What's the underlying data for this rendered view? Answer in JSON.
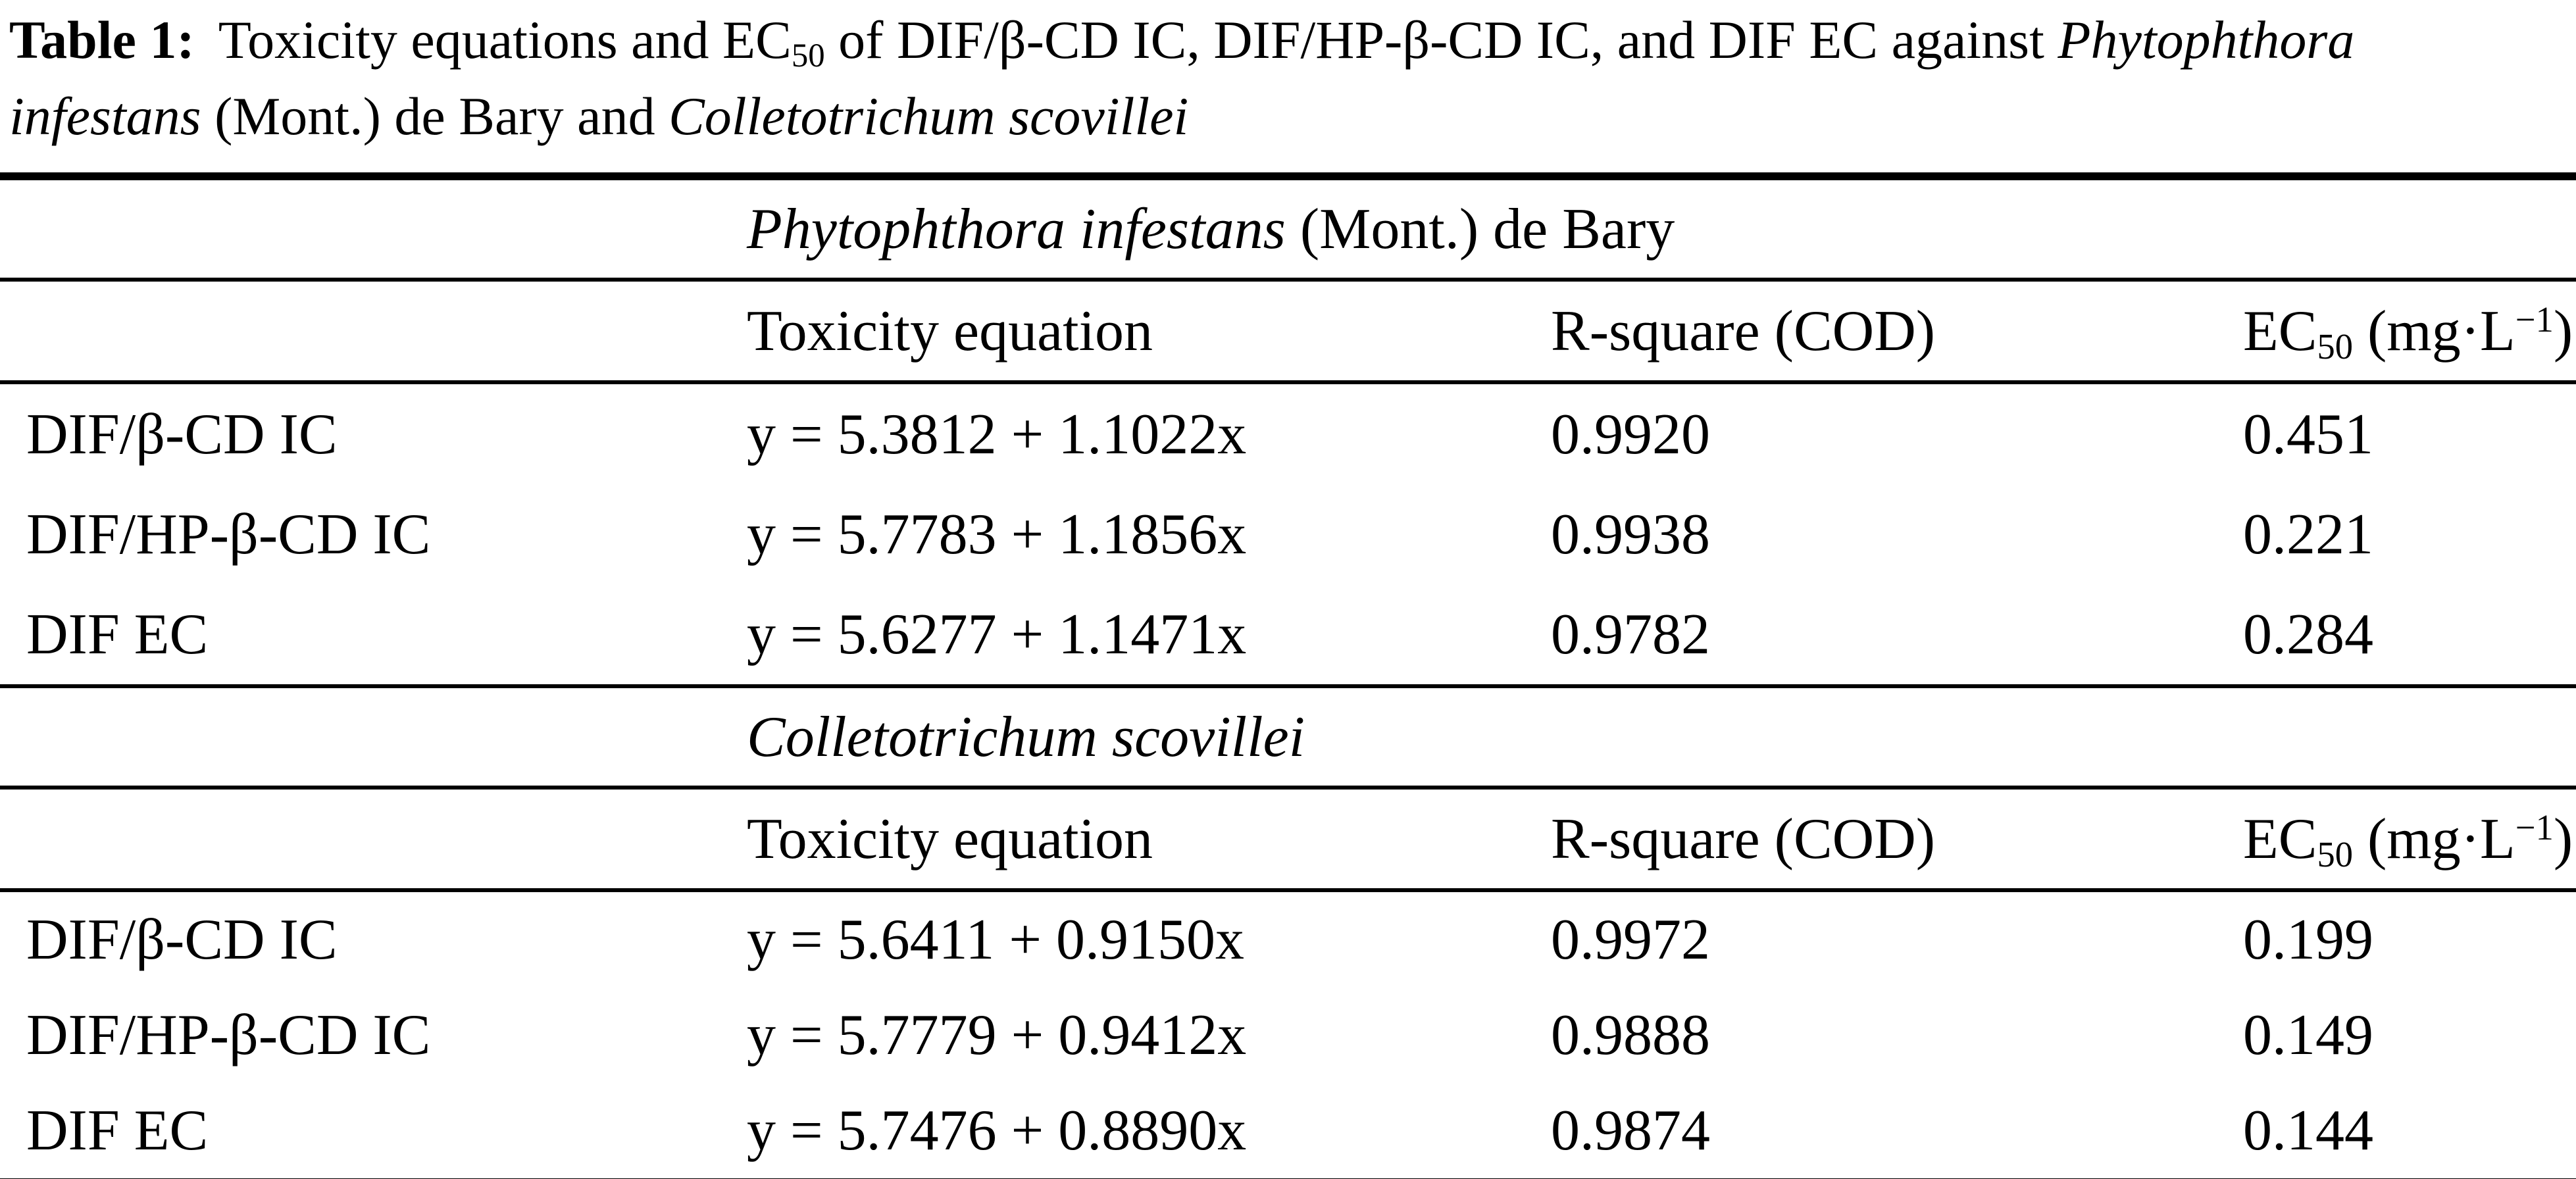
{
  "colors": {
    "text": "#000000",
    "background": "#ffffff",
    "rule": "#000000"
  },
  "caption": {
    "line1": {
      "label": "Table 1:",
      "text_a": "Toxicity equations and EC",
      "subscript": "50",
      "text_b": " of DIF/β-CD IC, DIF/HP-β-CD IC, and DIF EC against ",
      "species": "Phytophthora"
    },
    "line2": {
      "species_a": "infestans",
      "text_a": " (Mont.) de Bary and ",
      "species_b": "Colletotrichum scovillei"
    }
  },
  "table": {
    "sections": [
      {
        "group_header": {
          "italic": "Phytophthora infestans",
          "roman": " (Mont.) de Bary"
        },
        "columns": {
          "toxicity": "Toxicity equation",
          "rsquare": "R-square (COD)",
          "ec50_prefix": "EC",
          "ec50_sub": "50",
          "ec50_mid": " (mg·L",
          "ec50_sup": "−1",
          "ec50_suffix": ")"
        },
        "rows": [
          {
            "label": "DIF/β-CD IC",
            "equation": "y = 5.3812 + 1.1022x",
            "rsquare": "0.9920",
            "ec50": "0.451"
          },
          {
            "label": "DIF/HP-β-CD IC",
            "equation": "y = 5.7783 + 1.1856x",
            "rsquare": "0.9938",
            "ec50": "0.221"
          },
          {
            "label": "DIF EC",
            "equation": "y = 5.6277 + 1.1471x",
            "rsquare": "0.9782",
            "ec50": "0.284"
          }
        ]
      },
      {
        "group_header": {
          "italic": "Colletotrichum scovillei",
          "roman": ""
        },
        "columns": {
          "toxicity": "Toxicity equation",
          "rsquare": "R-square (COD)",
          "ec50_prefix": "EC",
          "ec50_sub": "50",
          "ec50_mid": " (mg·L",
          "ec50_sup": "−1",
          "ec50_suffix": ")"
        },
        "rows": [
          {
            "label": "DIF/β-CD IC",
            "equation": "y = 5.6411 + 0.9150x",
            "rsquare": "0.9972",
            "ec50": "0.199"
          },
          {
            "label": "DIF/HP-β-CD IC",
            "equation": "y = 5.7779 + 0.9412x",
            "rsquare": "0.9888",
            "ec50": "0.149"
          },
          {
            "label": "DIF EC",
            "equation": "y = 5.7476 + 0.8890x",
            "rsquare": "0.9874",
            "ec50": "0.144"
          }
        ]
      }
    ]
  }
}
